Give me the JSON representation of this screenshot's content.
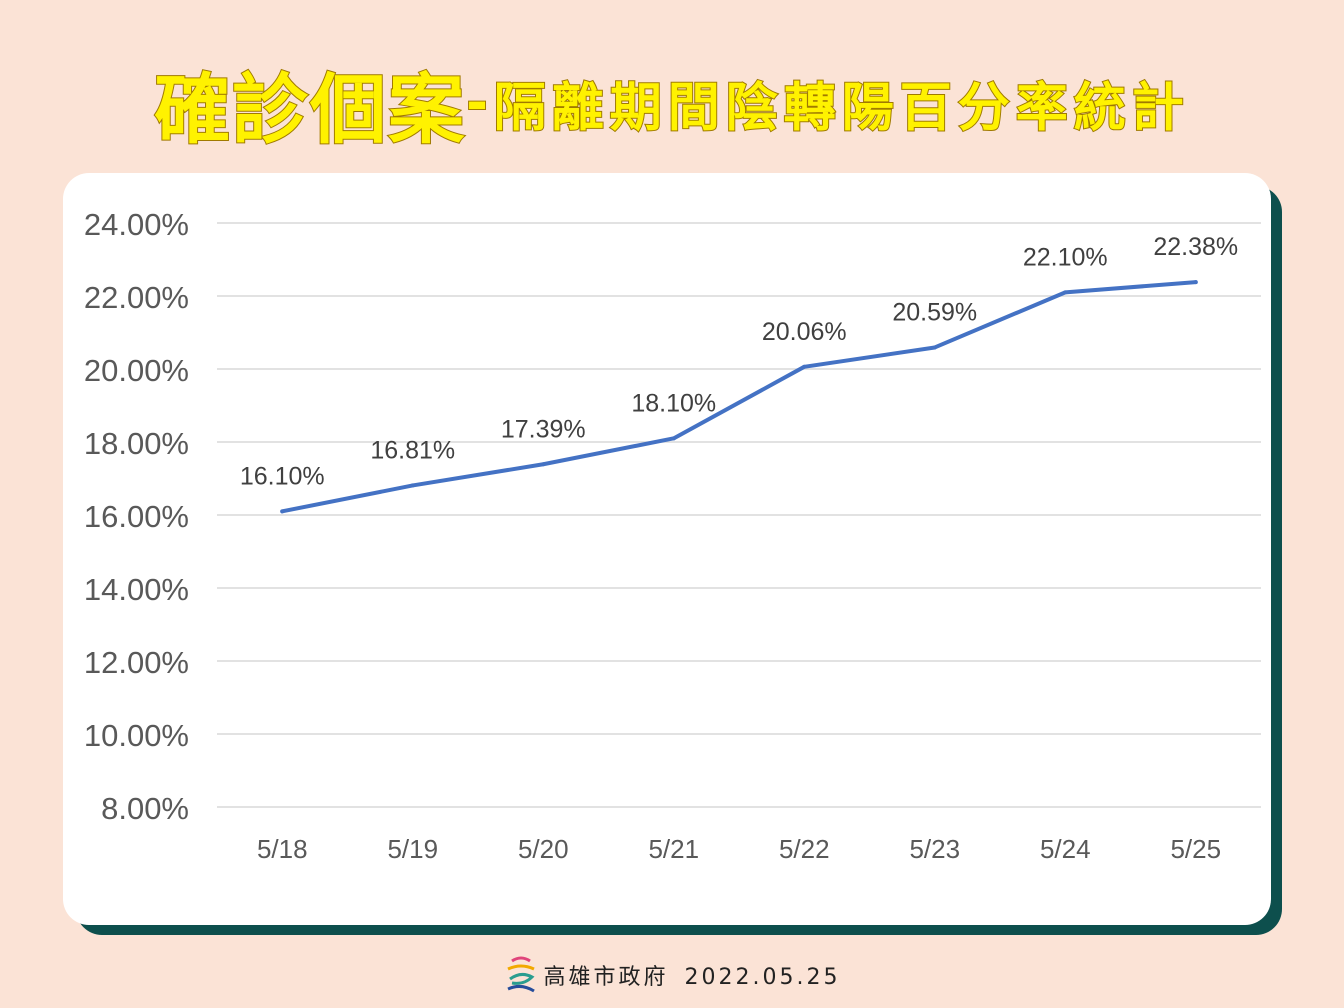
{
  "title": {
    "main": "確診個案",
    "separator": "-",
    "sub": "隔離期間陰轉陽百分率統計"
  },
  "footer": {
    "organization": "高雄市政府",
    "date": "2022.05.25",
    "logo_icon": "kaohsiung-city-logo-icon"
  },
  "colors": {
    "background": "#fbe3d6",
    "card": "#ffffff",
    "card_shadow": "#0d4f4d",
    "line": "#4472c4",
    "title_fill": "#fff200",
    "title_stroke": "#a07a00"
  },
  "chart_data": {
    "type": "line",
    "categories": [
      "5/18",
      "5/19",
      "5/20",
      "5/21",
      "5/22",
      "5/23",
      "5/24",
      "5/25"
    ],
    "series": [
      {
        "values": [
          16.1,
          16.81,
          17.39,
          18.1,
          20.06,
          20.59,
          22.1,
          22.38
        ],
        "labels": [
          "16.10%",
          "16.81%",
          "17.39%",
          "18.10%",
          "20.06%",
          "20.59%",
          "22.10%",
          "22.38%"
        ],
        "color": "#4472c4"
      }
    ],
    "ylim": [
      8,
      24
    ],
    "yticks": [
      8,
      10,
      12,
      14,
      16,
      18,
      20,
      22,
      24
    ],
    "ytick_labels": [
      "8.00%",
      "10.00%",
      "12.00%",
      "14.00%",
      "16.00%",
      "18.00%",
      "20.00%",
      "22.00%",
      "24.00%"
    ],
    "grid": true,
    "legend": "none",
    "title": "",
    "xlabel": "",
    "ylabel": ""
  }
}
